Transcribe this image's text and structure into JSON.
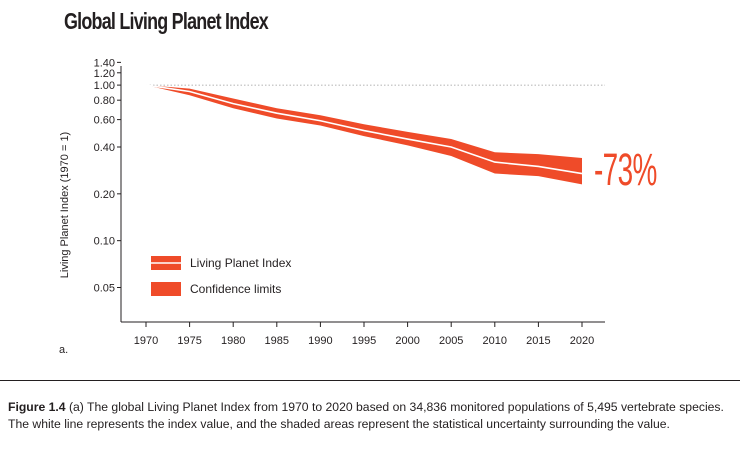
{
  "title": "Global Living Planet Index",
  "panel_label": "a.",
  "change_label": "-73%",
  "caption": {
    "label": "Figure 1.4",
    "text": " (a) The global Living Planet Index from 1970 to 2020 based on 34,836 monitored populations of 5,495 vertebrate species. The white line represents the index value, and the shaded areas represent the statistical uncertainty surrounding the value."
  },
  "colors": {
    "band": "#ef4b29",
    "index_line": "#ffffff",
    "text": "#231f20",
    "baseline": "#999999"
  },
  "chart_data": {
    "type": "area",
    "title": "Global Living Planet Index",
    "ylabel": "Living Planet Index (1970 = 1)",
    "xlabel": "",
    "y_scale": "log",
    "ylim": [
      0.03,
      1.45
    ],
    "xlim": [
      1969,
      2021
    ],
    "x_ticks": [
      1970,
      1975,
      1980,
      1985,
      1990,
      1995,
      2000,
      2005,
      2010,
      2015,
      2020
    ],
    "y_ticks": [
      {
        "value": 1.4,
        "label": "1.40"
      },
      {
        "value": 1.2,
        "label": "1.20"
      },
      {
        "value": 1.0,
        "label": "1.00"
      },
      {
        "value": 0.8,
        "label": "0.80"
      },
      {
        "value": 0.6,
        "label": "0.60"
      },
      {
        "value": 0.4,
        "label": "0.40"
      },
      {
        "value": 0.2,
        "label": "0.20"
      },
      {
        "value": 0.1,
        "label": "0.10"
      },
      {
        "value": 0.05,
        "label": "0.05"
      }
    ],
    "reference_line": 1.0,
    "series": [
      {
        "name": "Living Planet Index",
        "x": [
          1970,
          1975,
          1980,
          1985,
          1990,
          1995,
          2000,
          2005,
          2010,
          2015,
          2020
        ],
        "values": [
          1.0,
          0.91,
          0.76,
          0.66,
          0.59,
          0.51,
          0.45,
          0.4,
          0.32,
          0.3,
          0.27
        ]
      },
      {
        "name": "Confidence limits",
        "x": [
          1970,
          1975,
          1980,
          1985,
          1990,
          1995,
          2000,
          2005,
          2010,
          2015,
          2020
        ],
        "upper": [
          1.0,
          0.95,
          0.82,
          0.71,
          0.64,
          0.56,
          0.5,
          0.45,
          0.37,
          0.36,
          0.34
        ],
        "lower": [
          1.0,
          0.86,
          0.71,
          0.61,
          0.55,
          0.47,
          0.41,
          0.35,
          0.27,
          0.26,
          0.23
        ]
      }
    ],
    "legend": {
      "position": "lower-left",
      "entries": [
        "Living Planet Index",
        "Confidence limits"
      ]
    },
    "grid": false
  }
}
